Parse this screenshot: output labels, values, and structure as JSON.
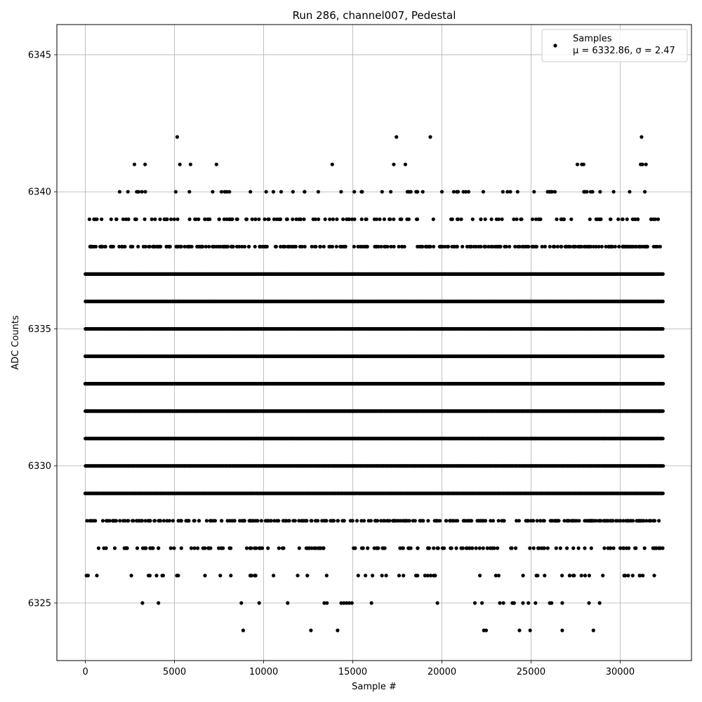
{
  "chart_data": {
    "type": "scatter",
    "title": "Run 286, channel007, Pedestal",
    "xlabel": "Sample #",
    "ylabel": "ADC Counts",
    "xlim": [
      -1600,
      34000
    ],
    "ylim": [
      6322.9,
      6346.1
    ],
    "x_ticks": [
      0,
      5000,
      10000,
      15000,
      20000,
      25000,
      30000
    ],
    "y_ticks": [
      6325,
      6330,
      6335,
      6340,
      6345
    ],
    "grid": true,
    "legend": {
      "position": "top-right",
      "series_label": "Samples",
      "stats_label": "μ = 6332.86, σ = 2.47"
    },
    "stats": {
      "mean": 6332.86,
      "sigma": 2.47
    },
    "marker_color": "#000000",
    "x_range_samples": [
      0,
      32400
    ],
    "level_densities": [
      {
        "y": 6324,
        "density": "rare"
      },
      {
        "y": 6325,
        "density": "rare"
      },
      {
        "y": 6326,
        "density": "sparse"
      },
      {
        "y": 6327,
        "density": "moderate"
      },
      {
        "y": 6328,
        "density": "dense"
      },
      {
        "y": 6329,
        "density": "solid"
      },
      {
        "y": 6330,
        "density": "solid"
      },
      {
        "y": 6331,
        "density": "solid"
      },
      {
        "y": 6332,
        "density": "solid"
      },
      {
        "y": 6333,
        "density": "solid"
      },
      {
        "y": 6334,
        "density": "solid"
      },
      {
        "y": 6335,
        "density": "solid"
      },
      {
        "y": 6336,
        "density": "solid"
      },
      {
        "y": 6337,
        "density": "solid"
      },
      {
        "y": 6338,
        "density": "dense"
      },
      {
        "y": 6339,
        "density": "moderate"
      },
      {
        "y": 6340,
        "density": "sparse"
      },
      {
        "y": 6341,
        "density": "rare"
      },
      {
        "y": 6342,
        "density": "rare"
      }
    ],
    "outlier_points": [
      {
        "x": 8850,
        "y": 6324
      },
      {
        "x": 12650,
        "y": 6324
      },
      {
        "x": 14150,
        "y": 6324
      },
      {
        "x": 22350,
        "y": 6324
      },
      {
        "x": 22480,
        "y": 6324
      },
      {
        "x": 24350,
        "y": 6324
      },
      {
        "x": 24950,
        "y": 6324
      },
      {
        "x": 26750,
        "y": 6324
      },
      {
        "x": 28500,
        "y": 6324
      },
      {
        "x": 3200,
        "y": 6325
      },
      {
        "x": 4100,
        "y": 6325
      },
      {
        "x": 8750,
        "y": 6325
      },
      {
        "x": 9750,
        "y": 6325
      },
      {
        "x": 11350,
        "y": 6325
      },
      {
        "x": 13400,
        "y": 6325
      },
      {
        "x": 13550,
        "y": 6325
      },
      {
        "x": 14350,
        "y": 6325
      },
      {
        "x": 14500,
        "y": 6325
      },
      {
        "x": 14650,
        "y": 6325
      },
      {
        "x": 14800,
        "y": 6325
      },
      {
        "x": 14950,
        "y": 6325
      },
      {
        "x": 16050,
        "y": 6325
      },
      {
        "x": 19750,
        "y": 6325
      },
      {
        "x": 21850,
        "y": 6325
      },
      {
        "x": 22250,
        "y": 6325
      },
      {
        "x": 23250,
        "y": 6325
      },
      {
        "x": 23450,
        "y": 6325
      },
      {
        "x": 23950,
        "y": 6325
      },
      {
        "x": 24050,
        "y": 6325
      },
      {
        "x": 24550,
        "y": 6325
      },
      {
        "x": 24850,
        "y": 6325
      },
      {
        "x": 25250,
        "y": 6325
      },
      {
        "x": 26050,
        "y": 6325
      },
      {
        "x": 26150,
        "y": 6325
      },
      {
        "x": 26750,
        "y": 6325
      },
      {
        "x": 28250,
        "y": 6325
      },
      {
        "x": 28850,
        "y": 6325
      },
      {
        "x": 2750,
        "y": 6341
      },
      {
        "x": 3350,
        "y": 6341
      },
      {
        "x": 5300,
        "y": 6341
      },
      {
        "x": 5900,
        "y": 6341
      },
      {
        "x": 7350,
        "y": 6341
      },
      {
        "x": 13850,
        "y": 6341
      },
      {
        "x": 17300,
        "y": 6341
      },
      {
        "x": 17950,
        "y": 6341
      },
      {
        "x": 27600,
        "y": 6341
      },
      {
        "x": 27850,
        "y": 6341
      },
      {
        "x": 27950,
        "y": 6341
      },
      {
        "x": 31150,
        "y": 6341
      },
      {
        "x": 31250,
        "y": 6341
      },
      {
        "x": 31450,
        "y": 6341
      },
      {
        "x": 5150,
        "y": 6342
      },
      {
        "x": 17450,
        "y": 6342
      },
      {
        "x": 19350,
        "y": 6342
      },
      {
        "x": 31200,
        "y": 6342
      }
    ]
  }
}
